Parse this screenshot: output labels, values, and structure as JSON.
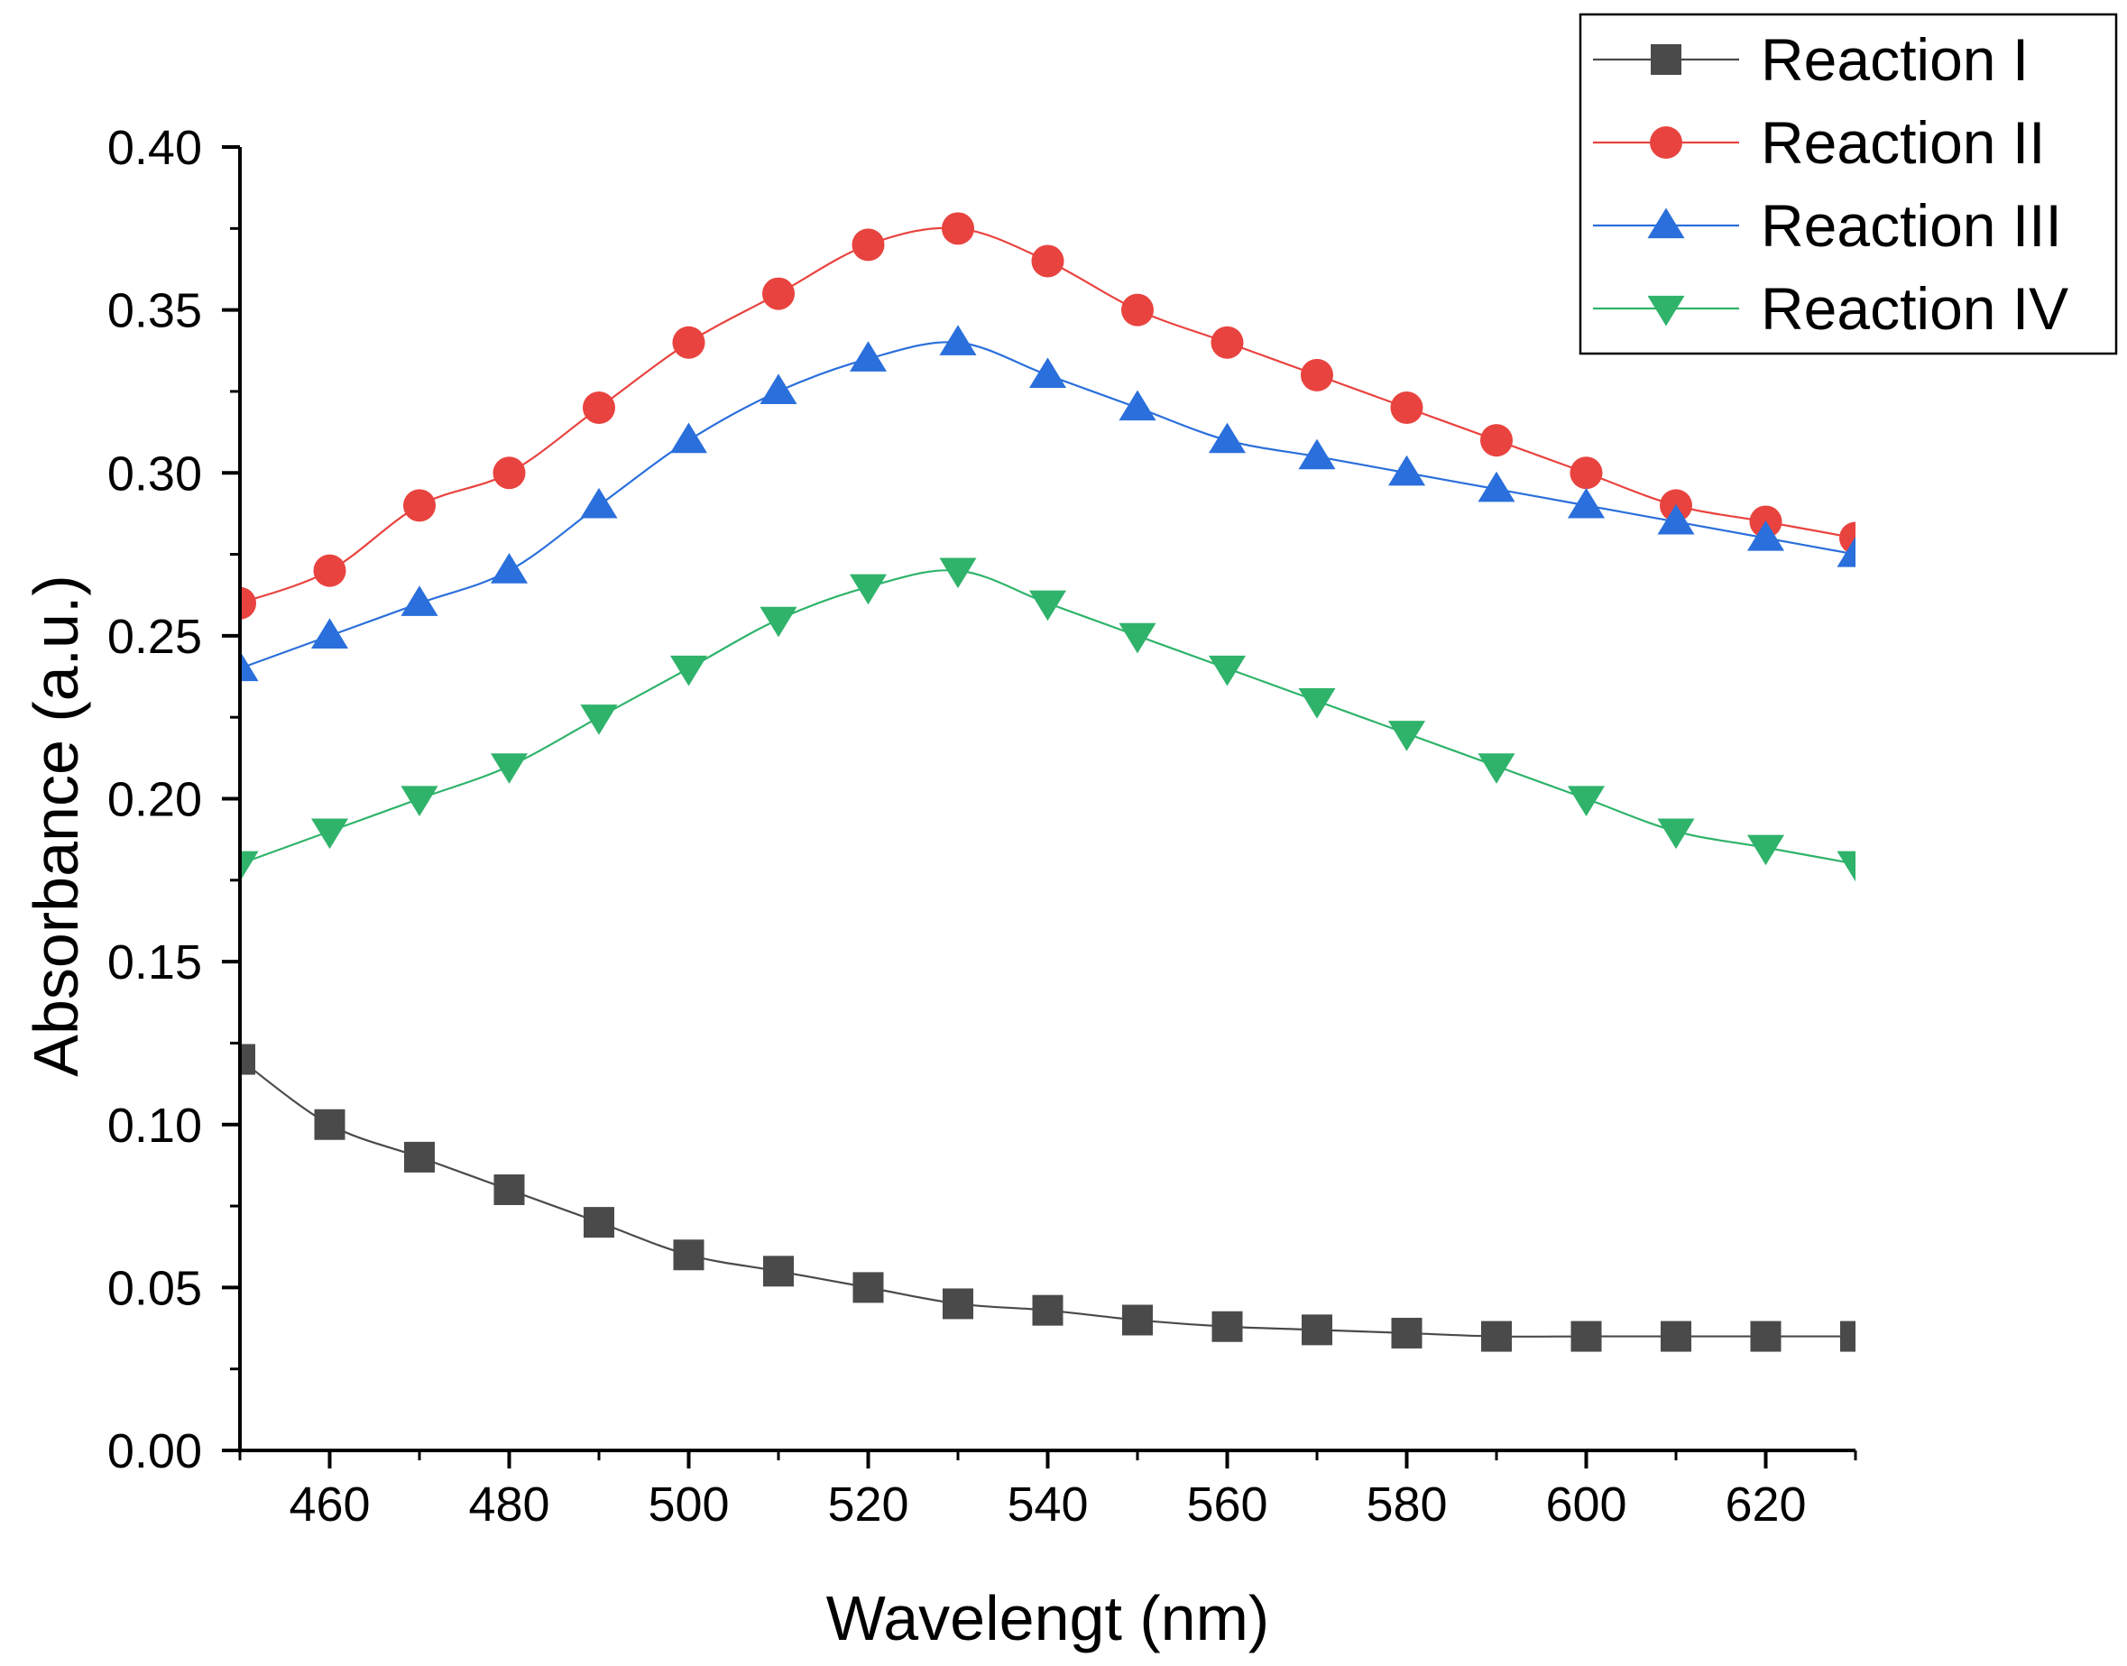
{
  "chart_data": {
    "type": "line",
    "title": "",
    "xlabel": "Wavelengt (nm)",
    "ylabel": "Absorbance (a.u.)",
    "xlim": [
      450,
      630
    ],
    "ylim": [
      0,
      0.4
    ],
    "xticks": [
      460,
      480,
      500,
      520,
      540,
      560,
      580,
      600,
      620
    ],
    "xtick_labels": [
      "460",
      "480",
      "500",
      "520",
      "540",
      "560",
      "580",
      "600",
      "620"
    ],
    "yticks": [
      0,
      0.05,
      0.1,
      0.15,
      0.2,
      0.25,
      0.3,
      0.35,
      0.4
    ],
    "ytick_labels": [
      "0.00",
      "0.05",
      "0.10",
      "0.15",
      "0.20",
      "0.25",
      "0.30",
      "0.35",
      "0.40"
    ],
    "grid": false,
    "legend": "top-right",
    "x": [
      450,
      460,
      470,
      480,
      490,
      500,
      510,
      520,
      530,
      540,
      550,
      560,
      570,
      580,
      590,
      600,
      610,
      620,
      630
    ],
    "series": [
      {
        "name": "Reaction I",
        "marker": "square",
        "color": "#4a4a4a",
        "values": [
          0.12,
          0.1,
          0.09,
          0.08,
          0.07,
          0.06,
          0.055,
          0.05,
          0.045,
          0.043,
          0.04,
          0.038,
          0.037,
          0.036,
          0.035,
          0.035,
          0.035,
          0.035,
          0.035
        ]
      },
      {
        "name": "Reaction II",
        "marker": "circle",
        "color": "#e8433f",
        "values": [
          0.26,
          0.27,
          0.29,
          0.3,
          0.32,
          0.34,
          0.355,
          0.37,
          0.375,
          0.365,
          0.35,
          0.34,
          0.33,
          0.32,
          0.31,
          0.3,
          0.29,
          0.285,
          0.28
        ]
      },
      {
        "name": "Reaction III",
        "marker": "triangle-up",
        "color": "#2a6fdb",
        "values": [
          0.24,
          0.25,
          0.26,
          0.27,
          0.29,
          0.31,
          0.325,
          0.335,
          0.34,
          0.33,
          0.32,
          0.31,
          0.305,
          0.3,
          0.295,
          0.29,
          0.285,
          0.28,
          0.275
        ]
      },
      {
        "name": "Reaction IV",
        "marker": "triangle-down",
        "color": "#2fb36b",
        "values": [
          0.18,
          0.19,
          0.2,
          0.21,
          0.225,
          0.24,
          0.255,
          0.265,
          0.27,
          0.26,
          0.25,
          0.24,
          0.23,
          0.22,
          0.21,
          0.2,
          0.19,
          0.185,
          0.18
        ]
      }
    ]
  }
}
